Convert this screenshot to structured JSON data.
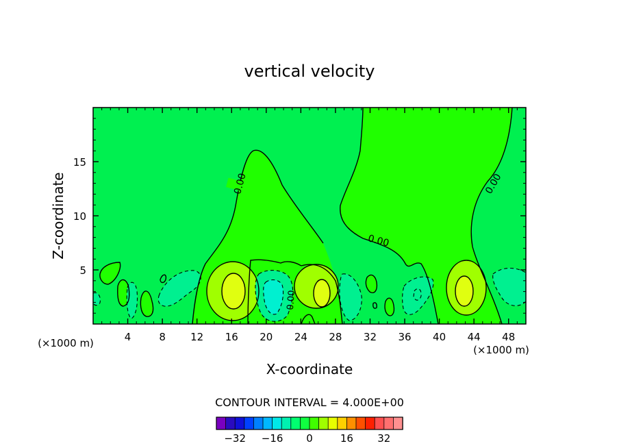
{
  "chart_data": {
    "type": "contour",
    "title": "vertical velocity",
    "xlabel": "X-coordinate",
    "ylabel": "Z-coordinate",
    "x_unit_left": "(×1000 m)",
    "x_unit_right": "(×1000 m)",
    "xlim": [
      0,
      50
    ],
    "ylim": [
      0,
      20
    ],
    "x_ticks": [
      4,
      8,
      12,
      16,
      20,
      24,
      28,
      32,
      36,
      40,
      44,
      48
    ],
    "y_ticks": [
      5,
      10,
      15
    ],
    "contour_label": "0.00",
    "contour_interval_text": "CONTOUR INTERVAL = 4.000E+00",
    "colorbar": {
      "colors": [
        "#7a00c0",
        "#2a0bbf",
        "#1010d8",
        "#0040ff",
        "#0080ff",
        "#00b8ff",
        "#00e8e8",
        "#00f0b0",
        "#00ff70",
        "#10ff40",
        "#40ff00",
        "#a0ff00",
        "#e8ff00",
        "#ffd000",
        "#ff9000",
        "#ff5000",
        "#ff2000",
        "#ff5050",
        "#ff7070",
        "#ff9090"
      ],
      "tick_labels": [
        "−32",
        "−16",
        "0",
        "16",
        "32"
      ],
      "tick_values": [
        -32,
        -16,
        0,
        16,
        32
      ],
      "vmin": -40,
      "vmax": 40
    },
    "fill_colors": {
      "background": "#00f050",
      "positive": "#20ff00",
      "strong_positive": "#a0ff00",
      "peak": "#e0ff10",
      "negative": "#00f090",
      "strong_negative": "#00f0d0"
    }
  }
}
